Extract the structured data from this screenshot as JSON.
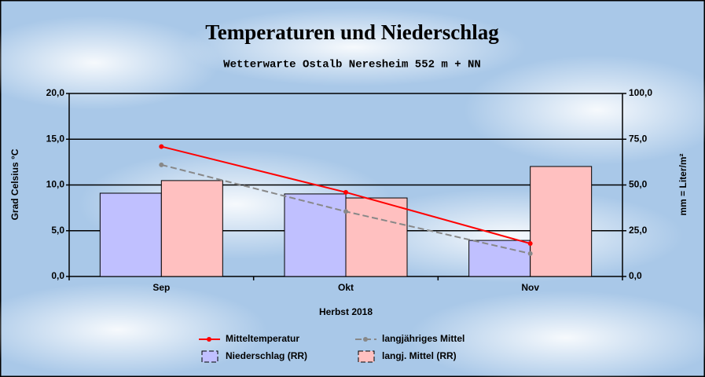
{
  "chart_data": {
    "type": "bar-line",
    "title": "Temperaturen und Niederschlag",
    "subtitle": "Wetterwarte Ostalb Neresheim 552 m + NN",
    "xlabel": "Herbst 2018",
    "ylabel": "Grad Celsius °C",
    "y2label": "mm = Liter/m²",
    "categories": [
      "Sep",
      "Okt",
      "Nov"
    ],
    "ylim": [
      0,
      20
    ],
    "yticks": [
      {
        "value": 0,
        "label": "0,0"
      },
      {
        "value": 5,
        "label": "5,0"
      },
      {
        "value": 10,
        "label": "10,0"
      },
      {
        "value": 15,
        "label": "15,0"
      },
      {
        "value": 20,
        "label": "20,0"
      }
    ],
    "y2lim": [
      0,
      100
    ],
    "y2ticks": [
      {
        "value": 0,
        "label": "0,0"
      },
      {
        "value": 25,
        "label": "25,0"
      },
      {
        "value": 50,
        "label": "50,0"
      },
      {
        "value": 75,
        "label": "75,0"
      },
      {
        "value": 100,
        "label": "100,0"
      }
    ],
    "grid": true,
    "series": [
      {
        "name": "Mitteltemperatur",
        "type": "line",
        "color": "#ff0000",
        "values": [
          14.2,
          9.2,
          3.6
        ]
      },
      {
        "name": "langjähriges Mittel",
        "type": "line",
        "color": "#888888",
        "dashed": true,
        "values": [
          12.2,
          7.1,
          2.5
        ]
      },
      {
        "name": "Niederschlag (RR)",
        "type": "bar",
        "axis": "y2",
        "color": "#c0c0ff",
        "values": [
          45.5,
          45.1,
          19.7
        ]
      },
      {
        "name": "langj. Mittel (RR)",
        "type": "bar",
        "axis": "y2",
        "color": "#ffc0c0",
        "values": [
          52.4,
          42.9,
          60.1
        ]
      }
    ]
  }
}
